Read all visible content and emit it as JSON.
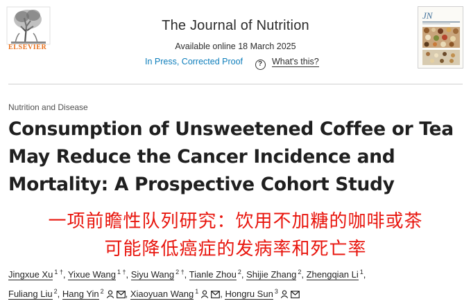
{
  "publisher": {
    "name": "ELSEVIER"
  },
  "journal": {
    "name": "The Journal of Nutrition",
    "online_date": "Available online 18 March 2025",
    "status_link": "In Press, Corrected Proof",
    "help_link": "What's this?",
    "cover_abbrev": "JN"
  },
  "article": {
    "section": "Nutrition and Disease",
    "title_lines": [
      "Consumption of Unsweetened Coffee or Tea",
      "May Reduce the Cancer Incidence and",
      "Mortality: A Prospective Cohort Study"
    ],
    "chinese_title_lines": [
      "一项前瞻性队列研究：饮用不加糖的咖啡或茶",
      "可能降低癌症的发病率和死亡率"
    ]
  },
  "authors": [
    {
      "name": "Jingxue Xu",
      "aff": "1 †",
      "icons": []
    },
    {
      "name": "Yixue Wang",
      "aff": "1 †",
      "icons": []
    },
    {
      "name": "Siyu Wang",
      "aff": "2 †",
      "icons": []
    },
    {
      "name": "Tianle Zhou",
      "aff": "2",
      "icons": []
    },
    {
      "name": "Shijie Zhang",
      "aff": "2",
      "icons": []
    },
    {
      "name": "Zhengqian Li",
      "aff": "1",
      "icons": []
    },
    {
      "name": "Fuliang Liu",
      "aff": "2",
      "icons": []
    },
    {
      "name": "Hang Yin",
      "aff": "2",
      "icons": [
        "person-icon",
        "mail-icon"
      ]
    },
    {
      "name": "Xiaoyuan Wang",
      "aff": "1",
      "icons": [
        "person-icon",
        "mail-icon"
      ]
    },
    {
      "name": "Hongru Sun",
      "aff": "3",
      "icons": [
        "person-icon",
        "mail-icon"
      ]
    }
  ],
  "colors": {
    "publisher_orange": "#e9711c",
    "link_blue": "#0c7dbb",
    "chinese_title_red": "#e8150d",
    "text": "#1f1f1f"
  }
}
